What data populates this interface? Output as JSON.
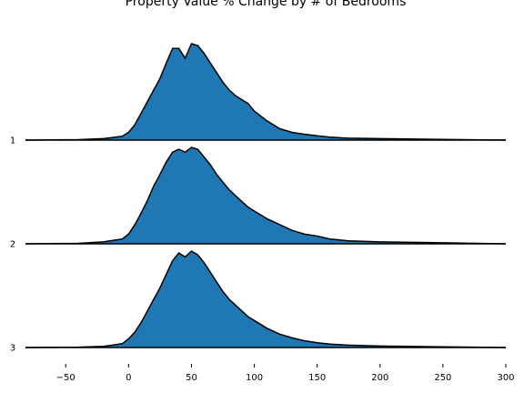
{
  "chart_data": {
    "type": "ridgeline",
    "title": "Property Value % Change by # of Bedrooms",
    "xlabel": "",
    "ylabel": "",
    "xlim": [
      -82,
      300
    ],
    "x_ticks": [
      -50,
      0,
      50,
      100,
      150,
      200,
      250,
      300
    ],
    "x_tick_labels": [
      "−50",
      "0",
      "50",
      "100",
      "150",
      "200",
      "250",
      "300"
    ],
    "grid": false,
    "fill_color": "#1f77b4",
    "line_color": "#000000",
    "series": [
      {
        "name": "1",
        "density": [
          [
            -82,
            0.0
          ],
          [
            -40,
            0.005
          ],
          [
            -20,
            0.015
          ],
          [
            -5,
            0.04
          ],
          [
            0,
            0.08
          ],
          [
            5,
            0.16
          ],
          [
            10,
            0.28
          ],
          [
            15,
            0.4
          ],
          [
            20,
            0.52
          ],
          [
            25,
            0.64
          ],
          [
            30,
            0.8
          ],
          [
            35,
            0.95
          ],
          [
            40,
            0.95
          ],
          [
            45,
            0.85
          ],
          [
            50,
            1.0
          ],
          [
            55,
            0.98
          ],
          [
            60,
            0.9
          ],
          [
            65,
            0.8
          ],
          [
            70,
            0.7
          ],
          [
            75,
            0.6
          ],
          [
            80,
            0.52
          ],
          [
            85,
            0.46
          ],
          [
            90,
            0.42
          ],
          [
            95,
            0.38
          ],
          [
            100,
            0.3
          ],
          [
            110,
            0.2
          ],
          [
            120,
            0.12
          ],
          [
            130,
            0.08
          ],
          [
            140,
            0.06
          ],
          [
            150,
            0.045
          ],
          [
            160,
            0.03
          ],
          [
            175,
            0.02
          ],
          [
            200,
            0.015
          ],
          [
            250,
            0.008
          ],
          [
            300,
            0.0
          ]
        ]
      },
      {
        "name": "2",
        "density": [
          [
            -82,
            0.0
          ],
          [
            -40,
            0.005
          ],
          [
            -20,
            0.02
          ],
          [
            -5,
            0.05
          ],
          [
            0,
            0.1
          ],
          [
            5,
            0.2
          ],
          [
            10,
            0.32
          ],
          [
            15,
            0.45
          ],
          [
            20,
            0.6
          ],
          [
            25,
            0.72
          ],
          [
            30,
            0.85
          ],
          [
            35,
            0.95
          ],
          [
            40,
            0.98
          ],
          [
            45,
            0.95
          ],
          [
            50,
            1.0
          ],
          [
            55,
            0.98
          ],
          [
            60,
            0.9
          ],
          [
            65,
            0.82
          ],
          [
            70,
            0.72
          ],
          [
            75,
            0.64
          ],
          [
            80,
            0.56
          ],
          [
            85,
            0.5
          ],
          [
            90,
            0.44
          ],
          [
            95,
            0.38
          ],
          [
            100,
            0.34
          ],
          [
            110,
            0.26
          ],
          [
            120,
            0.2
          ],
          [
            130,
            0.14
          ],
          [
            140,
            0.1
          ],
          [
            150,
            0.08
          ],
          [
            160,
            0.05
          ],
          [
            175,
            0.03
          ],
          [
            200,
            0.02
          ],
          [
            250,
            0.01
          ],
          [
            300,
            0.0
          ]
        ]
      },
      {
        "name": "3",
        "density": [
          [
            -82,
            0.0
          ],
          [
            -40,
            0.004
          ],
          [
            -20,
            0.012
          ],
          [
            -5,
            0.04
          ],
          [
            0,
            0.09
          ],
          [
            5,
            0.16
          ],
          [
            10,
            0.26
          ],
          [
            15,
            0.38
          ],
          [
            20,
            0.5
          ],
          [
            25,
            0.62
          ],
          [
            30,
            0.76
          ],
          [
            35,
            0.9
          ],
          [
            40,
            0.98
          ],
          [
            45,
            0.94
          ],
          [
            50,
            1.0
          ],
          [
            55,
            0.96
          ],
          [
            60,
            0.88
          ],
          [
            65,
            0.78
          ],
          [
            70,
            0.68
          ],
          [
            75,
            0.58
          ],
          [
            80,
            0.5
          ],
          [
            85,
            0.44
          ],
          [
            90,
            0.38
          ],
          [
            95,
            0.32
          ],
          [
            100,
            0.28
          ],
          [
            110,
            0.2
          ],
          [
            120,
            0.14
          ],
          [
            130,
            0.1
          ],
          [
            140,
            0.07
          ],
          [
            150,
            0.05
          ],
          [
            160,
            0.035
          ],
          [
            175,
            0.025
          ],
          [
            200,
            0.015
          ],
          [
            250,
            0.008
          ],
          [
            300,
            0.0
          ]
        ]
      }
    ]
  }
}
